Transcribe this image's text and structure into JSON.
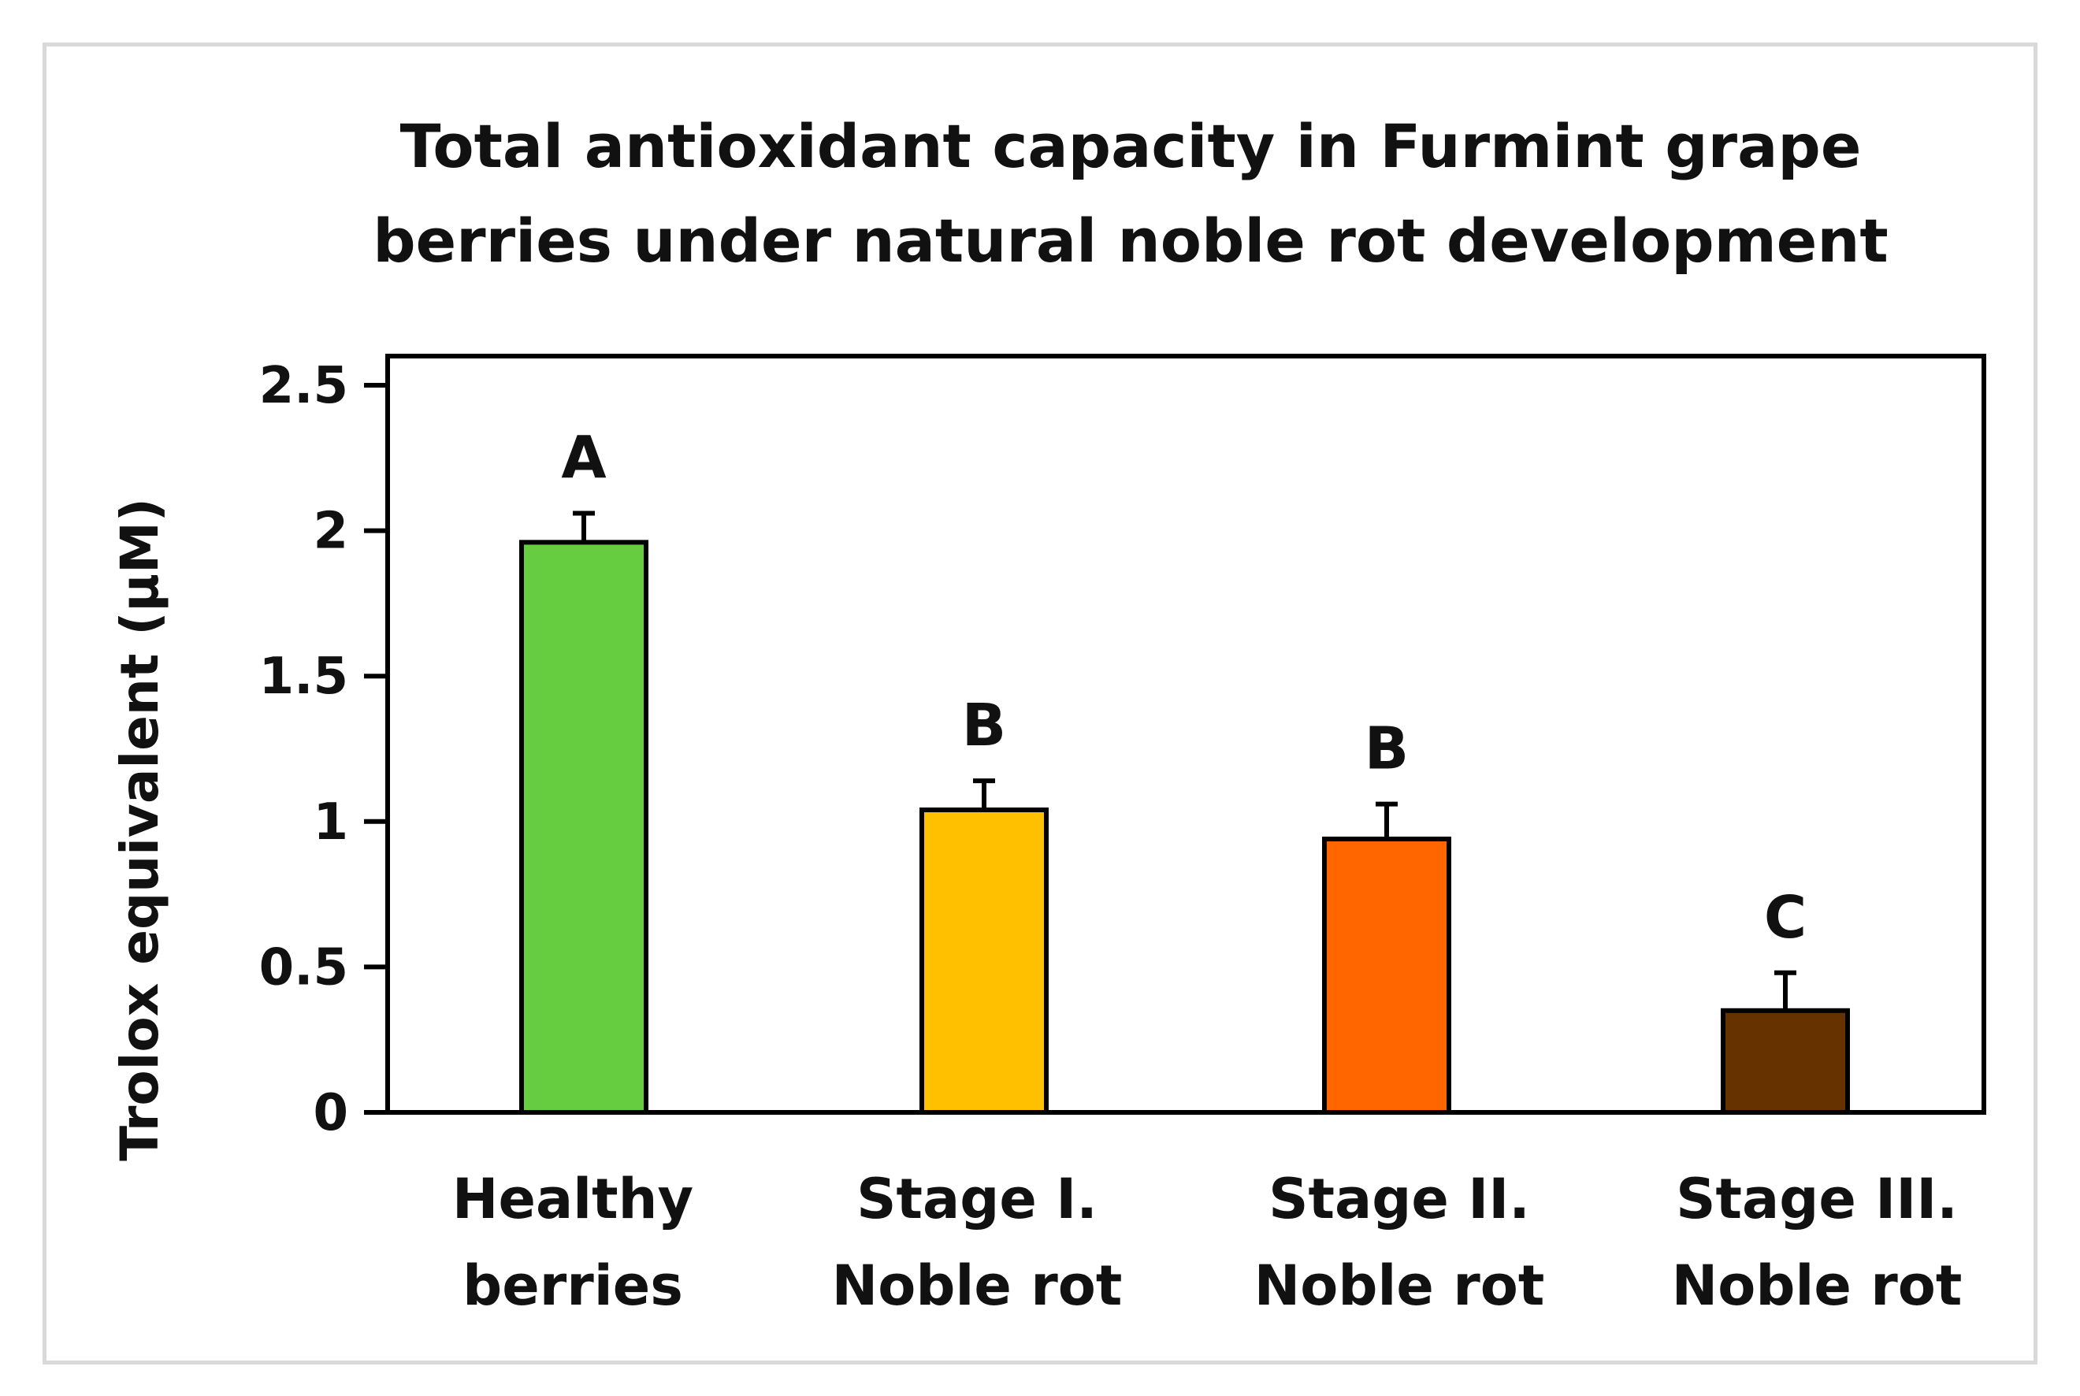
{
  "chart_data": {
    "type": "bar",
    "title": [
      "Total antioxidant capacity in Furmint grape",
      "berries under natural noble rot development"
    ],
    "ylabel": "Trolox equivalent (μM)",
    "xlabel": "",
    "ylim": [
      0,
      2.5
    ],
    "yticks": [
      "0",
      "0.5",
      "1",
      "1.5",
      "2",
      "2.5"
    ],
    "categories": [
      [
        "Healthy",
        "berries"
      ],
      [
        "Stage I.",
        "Noble rot"
      ],
      [
        "Stage II.",
        "Noble rot"
      ],
      [
        "Stage III.",
        "Noble rot"
      ]
    ],
    "values": [
      1.96,
      1.04,
      0.94,
      0.35
    ],
    "errors": [
      0.1,
      0.1,
      0.12,
      0.13
    ],
    "significance_letters": [
      "A",
      "B",
      "B",
      "C"
    ],
    "colors": [
      "#66cc40",
      "#ffc000",
      "#ff6600",
      "#663300"
    ],
    "grid": false,
    "legend": "none"
  }
}
